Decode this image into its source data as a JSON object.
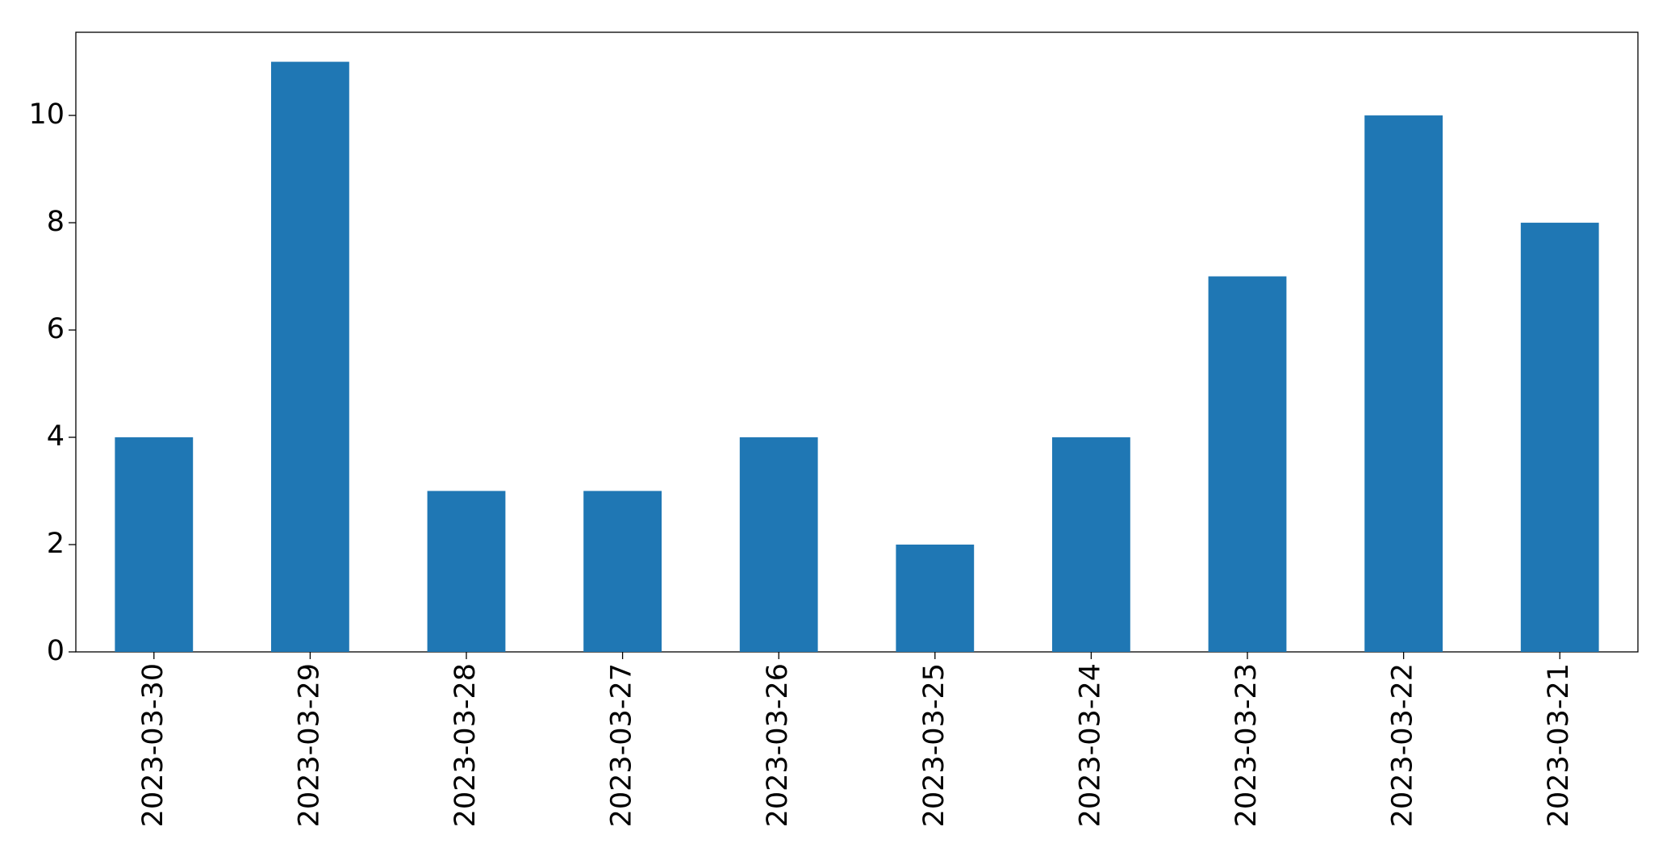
{
  "chart_data": {
    "type": "bar",
    "categories": [
      "2023-03-30",
      "2023-03-29",
      "2023-03-28",
      "2023-03-27",
      "2023-03-26",
      "2023-03-25",
      "2023-03-24",
      "2023-03-23",
      "2023-03-22",
      "2023-03-21"
    ],
    "values": [
      4,
      11,
      3,
      3,
      4,
      2,
      4,
      7,
      10,
      8
    ],
    "color": "#1f77b4",
    "ylim": [
      0,
      11.55
    ],
    "yticks": [
      0,
      2,
      4,
      6,
      8,
      10
    ],
    "grid": false
  }
}
